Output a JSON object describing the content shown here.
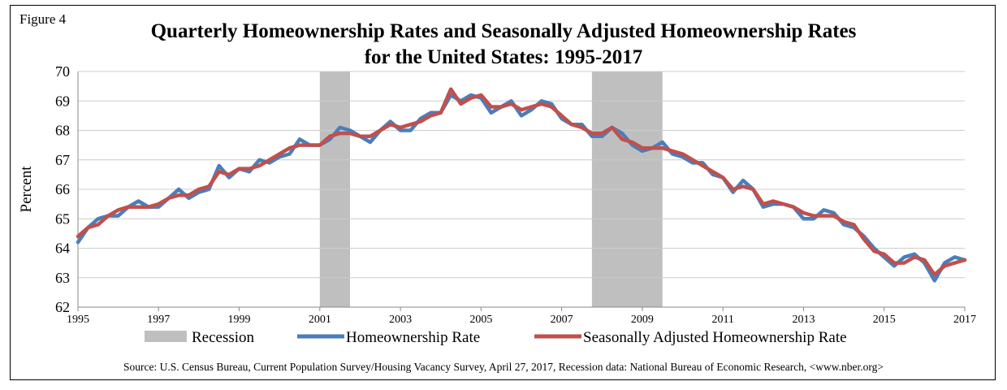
{
  "figure_label": "Figure 4",
  "title_line1": "Quarterly Homeownership Rates and Seasonally Adjusted Homeownership Rates",
  "title_line2": "for the United States: 1995-2017",
  "source": "Source: U.S. Census Bureau, Current Population Survey/Housing Vacancy Survey, April 27, 2017, Recession data: National Bureau of Economic Research, <www.nber.org>",
  "colors": {
    "homeownership": "#4a7ebb",
    "seasonally_adjusted": "#c0504d",
    "recession": "#bfbfbf",
    "grid": "#cccccc"
  },
  "chart_data": {
    "type": "line",
    "xlabel": "",
    "ylabel": "Percent",
    "xlim": [
      1995,
      2017
    ],
    "ylim": [
      62,
      70
    ],
    "x_ticks": [
      "1995",
      "1997",
      "1999",
      "2001",
      "2003",
      "2005",
      "2007",
      "2009",
      "2011",
      "2013",
      "2015",
      "2017"
    ],
    "y_ticks": [
      "62",
      "63",
      "64",
      "65",
      "66",
      "67",
      "68",
      "69",
      "70"
    ],
    "grid": "horizontal",
    "legend_position": "bottom",
    "legend": [
      "Recession",
      "Homeownership Rate",
      "Seasonally Adjusted Homeownership Rate"
    ],
    "recessions": [
      {
        "name": "Recession",
        "start": 2001.0,
        "end": 2001.75
      },
      {
        "name": "Recession",
        "start": 2007.75,
        "end": 2009.5
      }
    ],
    "series": [
      {
        "name": "Homeownership Rate",
        "x": [
          1995.0,
          1995.25,
          1995.5,
          1995.75,
          1996.0,
          1996.25,
          1996.5,
          1996.75,
          1997.0,
          1997.25,
          1997.5,
          1997.75,
          1998.0,
          1998.25,
          1998.5,
          1998.75,
          1999.0,
          1999.25,
          1999.5,
          1999.75,
          2000.0,
          2000.25,
          2000.5,
          2000.75,
          2001.0,
          2001.25,
          2001.5,
          2001.75,
          2002.0,
          2002.25,
          2002.5,
          2002.75,
          2003.0,
          2003.25,
          2003.5,
          2003.75,
          2004.0,
          2004.25,
          2004.5,
          2004.75,
          2005.0,
          2005.25,
          2005.5,
          2005.75,
          2006.0,
          2006.25,
          2006.5,
          2006.75,
          2007.0,
          2007.25,
          2007.5,
          2007.75,
          2008.0,
          2008.25,
          2008.5,
          2008.75,
          2009.0,
          2009.25,
          2009.5,
          2009.75,
          2010.0,
          2010.25,
          2010.5,
          2010.75,
          2011.0,
          2011.25,
          2011.5,
          2011.75,
          2012.0,
          2012.25,
          2012.5,
          2012.75,
          2013.0,
          2013.25,
          2013.5,
          2013.75,
          2014.0,
          2014.25,
          2014.5,
          2014.75,
          2015.0,
          2015.25,
          2015.5,
          2015.75,
          2016.0,
          2016.25,
          2016.5,
          2016.75,
          2017.0
        ],
        "values": [
          64.2,
          64.7,
          65.0,
          65.1,
          65.1,
          65.4,
          65.6,
          65.4,
          65.4,
          65.7,
          66.0,
          65.7,
          65.9,
          66.0,
          66.8,
          66.4,
          66.7,
          66.6,
          67.0,
          66.9,
          67.1,
          67.2,
          67.7,
          67.5,
          67.5,
          67.7,
          68.1,
          68.0,
          67.8,
          67.6,
          68.0,
          68.3,
          68.0,
          68.0,
          68.4,
          68.6,
          68.6,
          69.2,
          69.0,
          69.2,
          69.1,
          68.6,
          68.8,
          69.0,
          68.5,
          68.7,
          69.0,
          68.9,
          68.4,
          68.2,
          68.2,
          67.8,
          67.8,
          68.1,
          67.9,
          67.5,
          67.3,
          67.4,
          67.6,
          67.2,
          67.1,
          66.9,
          66.9,
          66.5,
          66.4,
          65.9,
          66.3,
          66.0,
          65.4,
          65.5,
          65.5,
          65.4,
          65.0,
          65.0,
          65.3,
          65.2,
          64.8,
          64.7,
          64.4,
          64.0,
          63.7,
          63.4,
          63.7,
          63.8,
          63.5,
          62.9,
          63.5,
          63.7,
          63.6
        ]
      },
      {
        "name": "Seasonally Adjusted Homeownership Rate",
        "x": [
          1995.0,
          1995.25,
          1995.5,
          1995.75,
          1996.0,
          1996.25,
          1996.5,
          1996.75,
          1997.0,
          1997.25,
          1997.5,
          1997.75,
          1998.0,
          1998.25,
          1998.5,
          1998.75,
          1999.0,
          1999.25,
          1999.5,
          1999.75,
          2000.0,
          2000.25,
          2000.5,
          2000.75,
          2001.0,
          2001.25,
          2001.5,
          2001.75,
          2002.0,
          2002.25,
          2002.5,
          2002.75,
          2003.0,
          2003.25,
          2003.5,
          2003.75,
          2004.0,
          2004.25,
          2004.5,
          2004.75,
          2005.0,
          2005.25,
          2005.5,
          2005.75,
          2006.0,
          2006.25,
          2006.5,
          2006.75,
          2007.0,
          2007.25,
          2007.5,
          2007.75,
          2008.0,
          2008.25,
          2008.5,
          2008.75,
          2009.0,
          2009.25,
          2009.5,
          2009.75,
          2010.0,
          2010.25,
          2010.5,
          2010.75,
          2011.0,
          2011.25,
          2011.5,
          2011.75,
          2012.0,
          2012.25,
          2012.5,
          2012.75,
          2013.0,
          2013.25,
          2013.5,
          2013.75,
          2014.0,
          2014.25,
          2014.5,
          2014.75,
          2015.0,
          2015.25,
          2015.5,
          2015.75,
          2016.0,
          2016.25,
          2016.5,
          2016.75,
          2017.0
        ],
        "values": [
          64.4,
          64.7,
          64.8,
          65.1,
          65.3,
          65.4,
          65.4,
          65.4,
          65.5,
          65.7,
          65.8,
          65.8,
          66.0,
          66.1,
          66.6,
          66.5,
          66.7,
          66.7,
          66.8,
          67.0,
          67.2,
          67.4,
          67.5,
          67.5,
          67.5,
          67.8,
          67.9,
          67.9,
          67.8,
          67.8,
          68.0,
          68.2,
          68.1,
          68.2,
          68.3,
          68.5,
          68.6,
          69.4,
          68.9,
          69.1,
          69.2,
          68.8,
          68.8,
          68.9,
          68.7,
          68.8,
          68.9,
          68.8,
          68.5,
          68.2,
          68.1,
          67.9,
          67.9,
          68.1,
          67.7,
          67.6,
          67.4,
          67.4,
          67.4,
          67.3,
          67.2,
          67.0,
          66.8,
          66.6,
          66.4,
          66.0,
          66.1,
          66.0,
          65.5,
          65.6,
          65.5,
          65.4,
          65.2,
          65.1,
          65.1,
          65.1,
          64.9,
          64.8,
          64.3,
          63.9,
          63.8,
          63.5,
          63.5,
          63.7,
          63.6,
          63.1,
          63.4,
          63.5,
          63.6
        ]
      }
    ]
  }
}
